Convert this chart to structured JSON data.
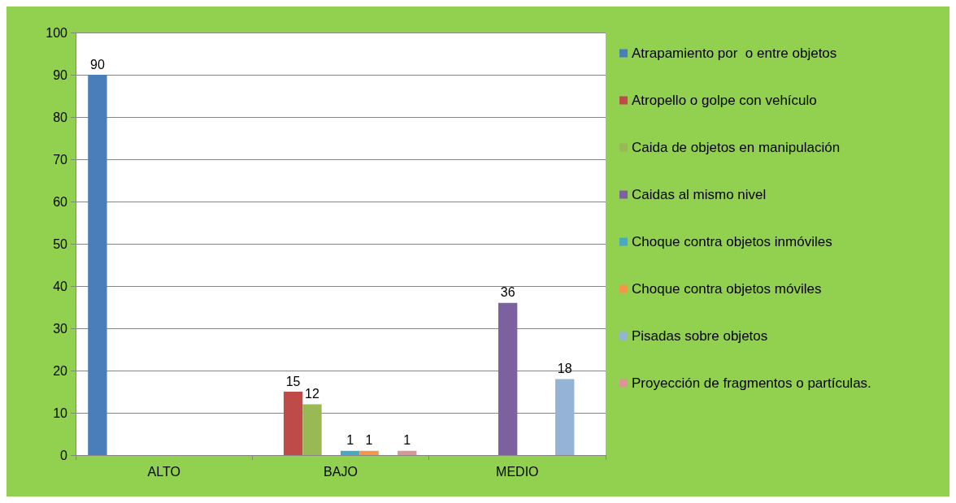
{
  "chart_data": {
    "type": "bar",
    "categories": [
      "ALTO",
      "BAJO",
      "MEDIO"
    ],
    "series": [
      {
        "name": "Atrapamiento por  o entre objetos",
        "color": "#4a7ebb",
        "values": [
          90,
          null,
          null
        ]
      },
      {
        "name": "Atropello o golpe con vehículo",
        "color": "#be4b48",
        "values": [
          null,
          15,
          null
        ]
      },
      {
        "name": "Caida de objetos en manipulación",
        "color": "#98b954",
        "values": [
          null,
          12,
          null
        ]
      },
      {
        "name": "Caidas al mismo nivel",
        "color": "#7d60a0",
        "values": [
          null,
          null,
          36
        ]
      },
      {
        "name": "Choque contra objetos inmóviles",
        "color": "#46aac5",
        "values": [
          null,
          1,
          null
        ]
      },
      {
        "name": "Choque contra objetos móviles",
        "color": "#f79646",
        "values": [
          null,
          1,
          null
        ]
      },
      {
        "name": "Pisadas sobre objetos",
        "color": "#95b3d7",
        "values": [
          null,
          null,
          18
        ]
      },
      {
        "name": "Proyección de fragmentos o partículas.",
        "color": "#d99694",
        "values": [
          null,
          1,
          null
        ]
      }
    ],
    "ylim": [
      0,
      100
    ],
    "yticks": [
      0,
      10,
      20,
      30,
      40,
      50,
      60,
      70,
      80,
      90,
      100
    ],
    "grid": "y",
    "legend": "right",
    "data_labels": true
  }
}
